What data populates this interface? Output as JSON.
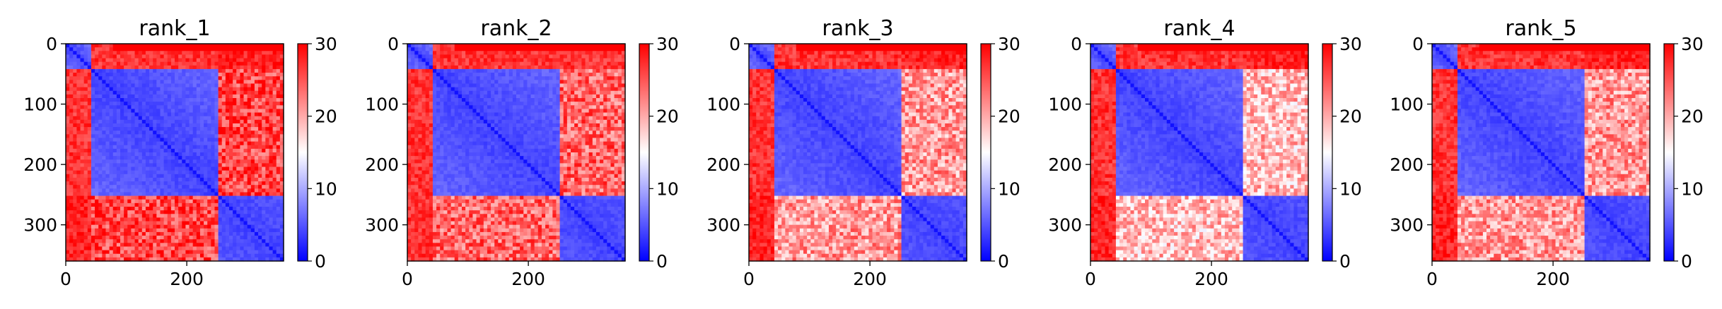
{
  "chart_data": [
    {
      "type": "heatmap",
      "title": "rank_1",
      "matrix_size": 360,
      "xticks": [
        0,
        200
      ],
      "yticks": [
        0,
        100,
        200,
        300
      ],
      "colorbar": {
        "ticks": [
          0,
          10,
          20,
          30
        ],
        "range": [
          0,
          30
        ],
        "colormap": "bwr"
      },
      "domains": [
        [
          0,
          45
        ],
        [
          45,
          255
        ],
        [
          255,
          360
        ]
      ],
      "block_values": {
        "intra_domain": 3,
        "domain1_domain2": 27,
        "domain1_domain3": 28,
        "domain2_domain3": 26,
        "terminal": 30
      }
    },
    {
      "type": "heatmap",
      "title": "rank_2",
      "matrix_size": 360,
      "xticks": [
        0,
        200
      ],
      "yticks": [
        0,
        100,
        200,
        300
      ],
      "colorbar": {
        "ticks": [
          0,
          10,
          20,
          30
        ],
        "range": [
          0,
          30
        ],
        "colormap": "bwr"
      },
      "domains": [
        [
          0,
          45
        ],
        [
          45,
          255
        ],
        [
          255,
          360
        ]
      ],
      "block_values": {
        "intra_domain": 3,
        "domain1_domain2": 27,
        "domain1_domain3": 27,
        "domain2_domain3": 24,
        "terminal": 30
      }
    },
    {
      "type": "heatmap",
      "title": "rank_3",
      "matrix_size": 360,
      "xticks": [
        0,
        200
      ],
      "yticks": [
        0,
        100,
        200,
        300
      ],
      "colorbar": {
        "ticks": [
          0,
          10,
          20,
          30
        ],
        "range": [
          0,
          30
        ],
        "colormap": "bwr"
      },
      "domains": [
        [
          0,
          45
        ],
        [
          45,
          255
        ],
        [
          255,
          360
        ]
      ],
      "block_values": {
        "intra_domain": 3,
        "domain1_domain2": 27,
        "domain1_domain3": 28,
        "domain2_domain3": 21,
        "terminal": 30
      }
    },
    {
      "type": "heatmap",
      "title": "rank_4",
      "matrix_size": 360,
      "xticks": [
        0,
        200
      ],
      "yticks": [
        0,
        100,
        200,
        300
      ],
      "colorbar": {
        "ticks": [
          0,
          10,
          20,
          30
        ],
        "range": [
          0,
          30
        ],
        "colormap": "bwr"
      },
      "domains": [
        [
          0,
          45
        ],
        [
          45,
          255
        ],
        [
          255,
          360
        ]
      ],
      "block_values": {
        "intra_domain": 3,
        "domain1_domain2": 27,
        "domain1_domain3": 28,
        "domain2_domain3": 19,
        "terminal": 30
      }
    },
    {
      "type": "heatmap",
      "title": "rank_5",
      "matrix_size": 360,
      "xticks": [
        0,
        200
      ],
      "yticks": [
        0,
        100,
        200,
        300
      ],
      "colorbar": {
        "ticks": [
          0,
          10,
          20,
          30
        ],
        "range": [
          0,
          30
        ],
        "colormap": "bwr"
      },
      "domains": [
        [
          0,
          45
        ],
        [
          45,
          255
        ],
        [
          255,
          360
        ]
      ],
      "block_values": {
        "intra_domain": 3,
        "domain1_domain2": 27,
        "domain1_domain3": 28,
        "domain2_domain3": 21,
        "terminal": 30
      }
    }
  ]
}
